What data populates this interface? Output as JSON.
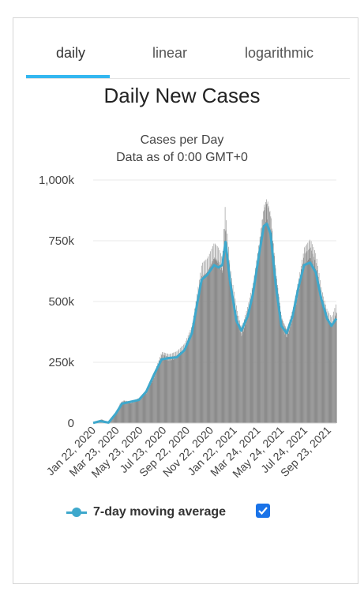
{
  "tabs": [
    {
      "label": "daily",
      "active": true
    },
    {
      "label": "linear",
      "active": false
    },
    {
      "label": "logarithmic",
      "active": false
    }
  ],
  "legend": {
    "label": "7-day moving average",
    "checked": true
  },
  "colors": {
    "bars": "#8c8c8c",
    "average_line": "#3ea8cc",
    "tab_underline": "#33b7f0",
    "checkbox": "#1a73e8"
  },
  "chart_data": {
    "type": "bar",
    "title": "Daily New Cases",
    "subtitle": "Cases per Day",
    "subtitle2": "Data as of 0:00 GMT+0",
    "ylim": [
      0,
      1000000
    ],
    "yticks": [
      {
        "value": 0,
        "label": "0"
      },
      {
        "value": 250000,
        "label": "250k"
      },
      {
        "value": 500000,
        "label": "500k"
      },
      {
        "value": 750000,
        "label": "750k"
      },
      {
        "value": 1000000,
        "label": "1,000k"
      }
    ],
    "xlim": [
      "2020-01-22",
      "2021-11-02"
    ],
    "xticks": [
      "Jan 22, 2020",
      "Mar 23, 2020",
      "May 23, 2020",
      "Jul 23, 2020",
      "Sep 22, 2020",
      "Nov 22, 2020",
      "Jan 22, 2021",
      "Mar 24, 2021",
      "May 24, 2021",
      "Jul 24, 2021",
      "Sep 23, 2021"
    ],
    "series": [
      {
        "name": "Daily New Cases",
        "kind": "bar",
        "points": [
          [
            "2020-01-22",
            600
          ],
          [
            "2020-02-13",
            15000
          ],
          [
            "2020-03-03",
            3000
          ],
          [
            "2020-03-23",
            40000
          ],
          [
            "2020-04-03",
            80000
          ],
          [
            "2020-04-12",
            90000
          ],
          [
            "2020-05-01",
            85000
          ],
          [
            "2020-05-23",
            100000
          ],
          [
            "2020-06-12",
            130000
          ],
          [
            "2020-07-03",
            200000
          ],
          [
            "2020-07-23",
            280000
          ],
          [
            "2020-08-12",
            270000
          ],
          [
            "2020-09-01",
            280000
          ],
          [
            "2020-09-22",
            310000
          ],
          [
            "2020-10-12",
            380000
          ],
          [
            "2020-10-27",
            520000
          ],
          [
            "2020-11-07",
            620000
          ],
          [
            "2020-11-22",
            640000
          ],
          [
            "2020-12-10",
            700000
          ],
          [
            "2020-12-22",
            680000
          ],
          [
            "2021-01-01",
            640000
          ],
          [
            "2021-01-08",
            840000
          ],
          [
            "2021-01-22",
            600000
          ],
          [
            "2021-02-08",
            450000
          ],
          [
            "2021-02-21",
            370000
          ],
          [
            "2021-03-10",
            460000
          ],
          [
            "2021-03-24",
            550000
          ],
          [
            "2021-04-08",
            700000
          ],
          [
            "2021-04-22",
            860000
          ],
          [
            "2021-04-30",
            890000
          ],
          [
            "2021-05-10",
            830000
          ],
          [
            "2021-05-24",
            600000
          ],
          [
            "2021-06-08",
            420000
          ],
          [
            "2021-06-22",
            370000
          ],
          [
            "2021-07-08",
            450000
          ],
          [
            "2021-07-24",
            570000
          ],
          [
            "2021-08-08",
            690000
          ],
          [
            "2021-08-24",
            720000
          ],
          [
            "2021-09-08",
            660000
          ],
          [
            "2021-09-23",
            520000
          ],
          [
            "2021-10-08",
            440000
          ],
          [
            "2021-10-20",
            410000
          ],
          [
            "2021-11-02",
            470000
          ]
        ]
      },
      {
        "name": "7-day moving average",
        "kind": "line",
        "points": [
          [
            "2020-01-22",
            600
          ],
          [
            "2020-02-10",
            8000
          ],
          [
            "2020-03-03",
            2000
          ],
          [
            "2020-03-23",
            40000
          ],
          [
            "2020-04-08",
            80000
          ],
          [
            "2020-05-23",
            95000
          ],
          [
            "2020-06-12",
            130000
          ],
          [
            "2020-07-03",
            200000
          ],
          [
            "2020-07-23",
            262000
          ],
          [
            "2020-08-12",
            268000
          ],
          [
            "2020-09-01",
            270000
          ],
          [
            "2020-09-22",
            300000
          ],
          [
            "2020-10-12",
            370000
          ],
          [
            "2020-10-27",
            500000
          ],
          [
            "2020-11-07",
            590000
          ],
          [
            "2020-11-22",
            610000
          ],
          [
            "2020-12-10",
            650000
          ],
          [
            "2020-12-22",
            640000
          ],
          [
            "2021-01-01",
            650000
          ],
          [
            "2021-01-10",
            745000
          ],
          [
            "2021-01-22",
            580000
          ],
          [
            "2021-02-08",
            420000
          ],
          [
            "2021-02-21",
            380000
          ],
          [
            "2021-03-10",
            440000
          ],
          [
            "2021-03-24",
            530000
          ],
          [
            "2021-04-08",
            680000
          ],
          [
            "2021-04-22",
            810000
          ],
          [
            "2021-04-30",
            820000
          ],
          [
            "2021-05-10",
            780000
          ],
          [
            "2021-05-24",
            570000
          ],
          [
            "2021-06-08",
            400000
          ],
          [
            "2021-06-22",
            370000
          ],
          [
            "2021-07-08",
            440000
          ],
          [
            "2021-07-24",
            560000
          ],
          [
            "2021-08-08",
            650000
          ],
          [
            "2021-08-24",
            660000
          ],
          [
            "2021-09-08",
            620000
          ],
          [
            "2021-09-23",
            510000
          ],
          [
            "2021-10-08",
            430000
          ],
          [
            "2021-10-20",
            400000
          ],
          [
            "2021-11-02",
            430000
          ]
        ]
      }
    ]
  }
}
